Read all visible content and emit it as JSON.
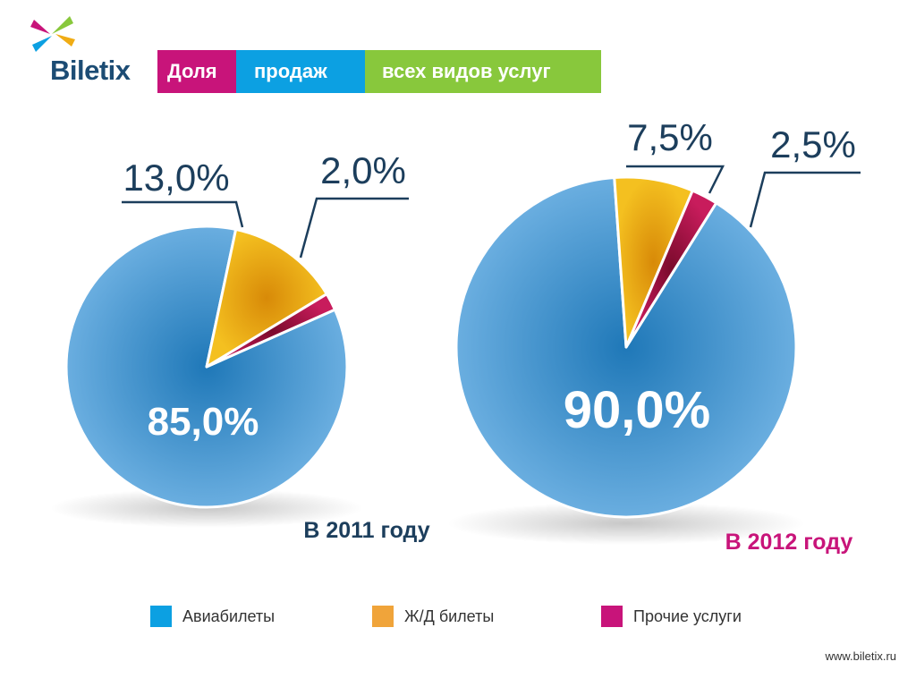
{
  "brand": {
    "name": "Biletix",
    "url": "www.biletix.ru"
  },
  "title": {
    "seg1": "Доля",
    "seg2": "продаж",
    "seg3": "всех видов услуг"
  },
  "colors": {
    "avia": "#5b9fd6",
    "rail": "#f0ac14",
    "other": "#b5154c",
    "title_pink": "#c8147a",
    "title_blue": "#0ca0e2",
    "title_green": "#88c83c",
    "label_dark": "#1c3e5c",
    "label_2012": "#c8147a",
    "legend_avia": "#0ca0e2",
    "legend_rail": "#f0a43a",
    "legend_other": "#c8147a"
  },
  "legend": [
    {
      "label": "Авиабилеты",
      "color": "#0ca0e2"
    },
    {
      "label": "Ж/Д билеты",
      "color": "#f0a43a"
    },
    {
      "label": "Прочие услуги",
      "color": "#c8147a"
    }
  ],
  "chart_data": [
    {
      "type": "pie",
      "title": "В 2011 году",
      "slices": [
        {
          "name": "Авиабилеты",
          "value": 85.0,
          "label": "85,0%"
        },
        {
          "name": "Ж/Д билеты",
          "value": 13.0,
          "label": "13,0%"
        },
        {
          "name": "Прочие услуги",
          "value": 2.0,
          "label": "2,0%"
        }
      ]
    },
    {
      "type": "pie",
      "title": "В 2012 году",
      "slices": [
        {
          "name": "Авиабилеты",
          "value": 90.0,
          "label": "90,0%"
        },
        {
          "name": "Ж/Д билеты",
          "value": 7.5,
          "label": "7,5%"
        },
        {
          "name": "Прочие услуги",
          "value": 2.5,
          "label": "2,5%"
        }
      ]
    }
  ]
}
